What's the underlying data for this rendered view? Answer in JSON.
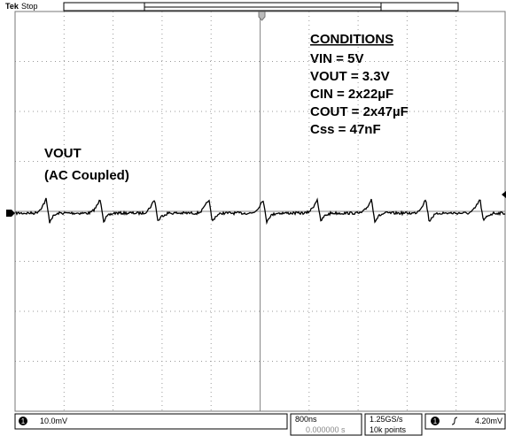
{
  "header": {
    "brand": "Tek",
    "status": "Stop"
  },
  "conditions": {
    "title": "CONDITIONS",
    "lines": [
      "VIN = 5V",
      "VOUT = 3.3V",
      "CIN = 2x22µF",
      "COUT = 2x47µF",
      "Css = 47nF"
    ]
  },
  "trace_label": [
    "VOUT",
    "(AC Coupled)"
  ],
  "status_bar": {
    "channel": "1",
    "scale": "10.0mV",
    "timebase": "800ns",
    "position": "0.000000 s",
    "sample_rate": "1.25GS/s",
    "record_length": "10k points",
    "trigger_channel": "1",
    "trigger_level": "4.20mV"
  }
}
